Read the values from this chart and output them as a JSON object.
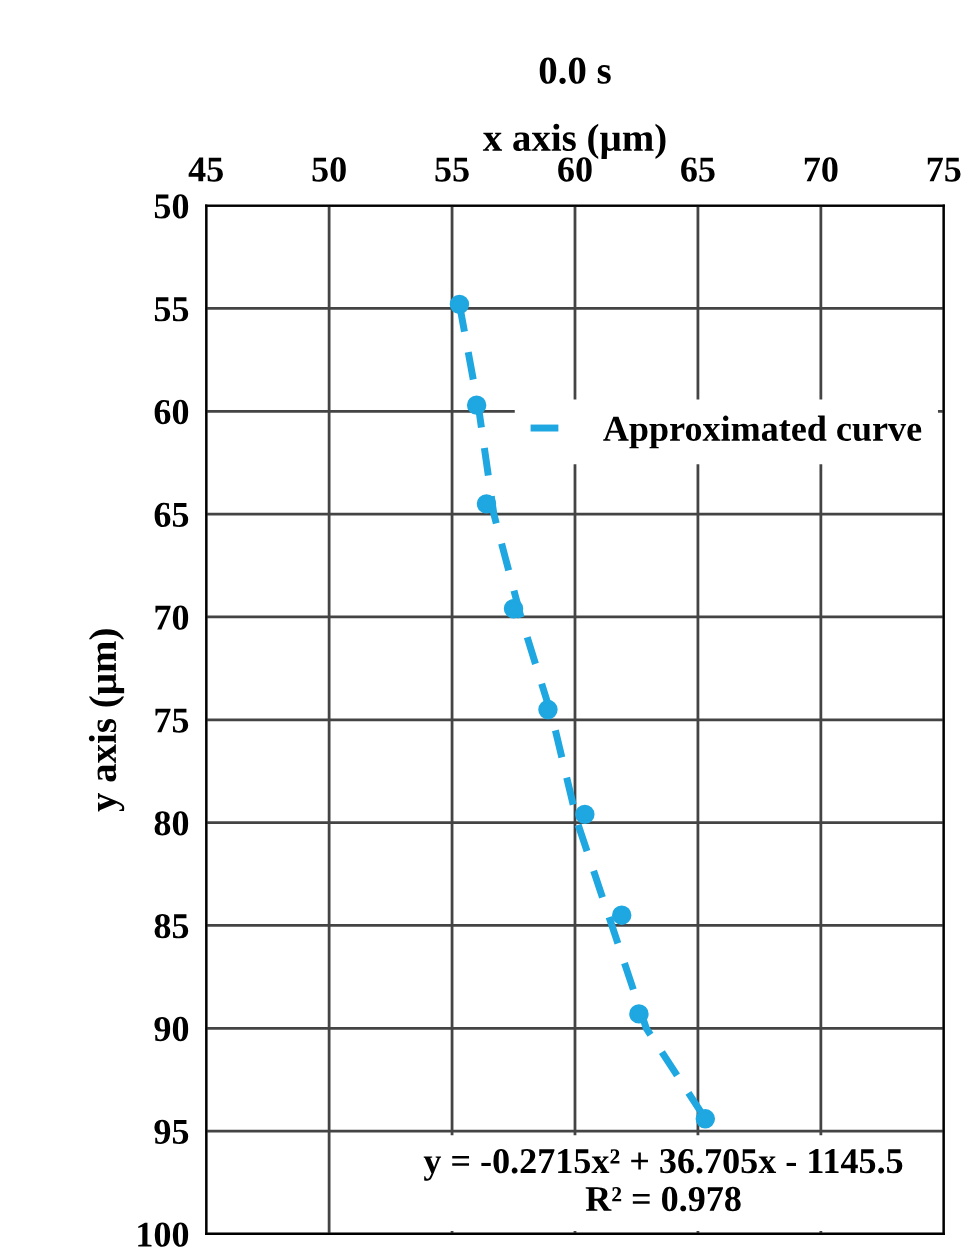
{
  "chart_data": {
    "type": "scatter",
    "title": "0.0 s",
    "xlabel": "x axis (µm)",
    "ylabel": "y axis (µm)",
    "xlim": [
      45,
      75
    ],
    "xticks": [
      45,
      50,
      55,
      60,
      65,
      70,
      75
    ],
    "ylim": [
      100,
      50
    ],
    "yticks": [
      50,
      55,
      60,
      65,
      70,
      75,
      80,
      85,
      90,
      95,
      100
    ],
    "grid": true,
    "legend": "right",
    "series": [
      {
        "marker": "circle",
        "color": "#1ea7e1",
        "x": [
          55.3,
          56.0,
          56.4,
          57.5,
          58.9,
          60.4,
          61.9,
          62.6,
          65.3
        ],
        "values": [
          54.8,
          59.7,
          64.5,
          69.6,
          74.5,
          79.6,
          84.5,
          89.3,
          94.4
        ]
      },
      {
        "type": "line",
        "name": "Approximated curve",
        "color": "#1ea7e1",
        "line_style": "dashed",
        "marker": "none",
        "x": [
          55.3,
          56.1,
          56.7,
          57.8,
          59.1,
          60.1,
          61.5,
          62.9,
          65.3
        ],
        "values": [
          54.8,
          60,
          65,
          70,
          75,
          80,
          85,
          90,
          94.4
        ]
      }
    ],
    "annotations": [
      "y = -0.2715x² + 36.705x - 1145.5\nR² = 0.978"
    ]
  }
}
